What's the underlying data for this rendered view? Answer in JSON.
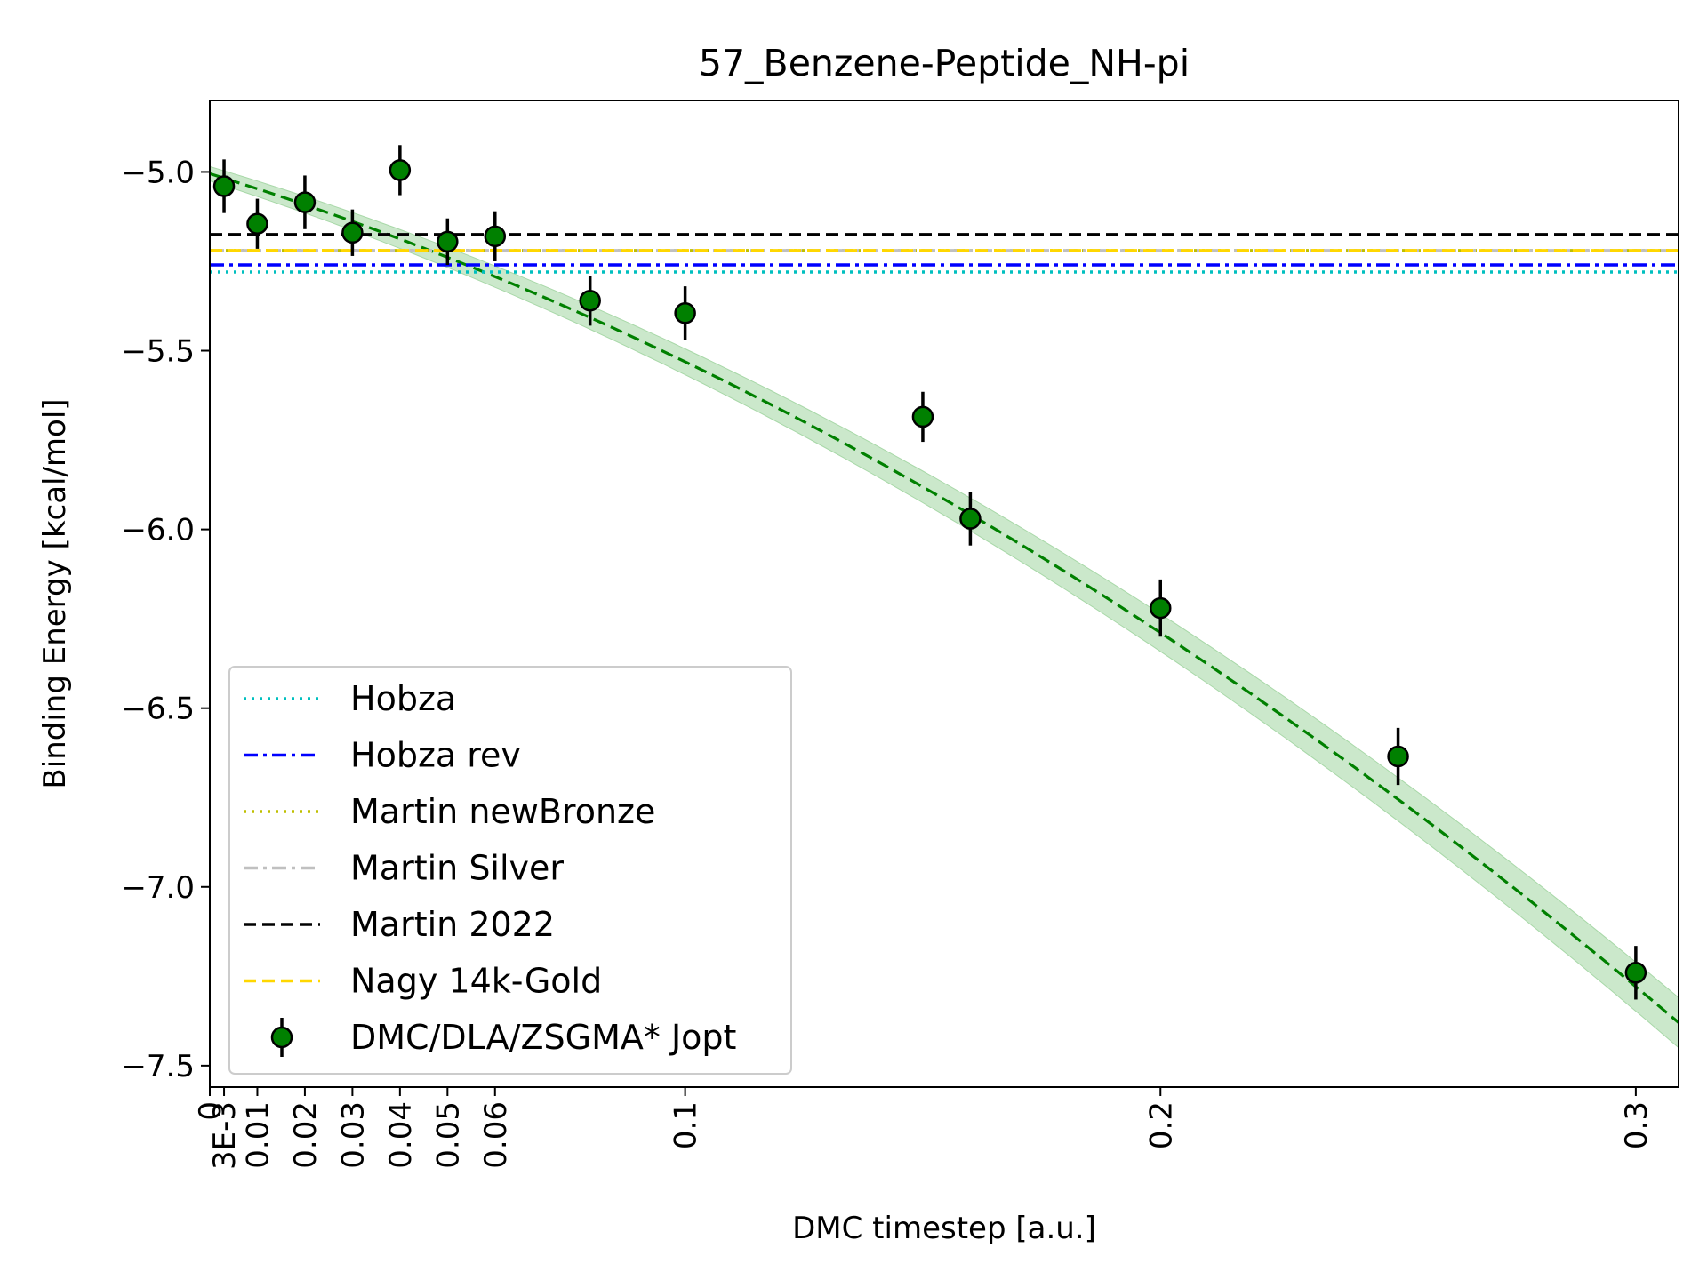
{
  "chart_data": {
    "type": "scatter",
    "title": "57_Benzene-Peptide_NH-pi",
    "xlabel": "DMC timestep [a.u.]",
    "ylabel": "Binding Energy [kcal/mol]",
    "xlim": [
      0,
      0.309
    ],
    "ylim": [
      -7.56,
      -4.8
    ],
    "x_ticks": [
      {
        "value": 0,
        "label": "0"
      },
      {
        "value": 0.003,
        "label": "3E-3"
      },
      {
        "value": 0.01,
        "label": "0.01"
      },
      {
        "value": 0.02,
        "label": "0.02"
      },
      {
        "value": 0.03,
        "label": "0.03"
      },
      {
        "value": 0.04,
        "label": "0.04"
      },
      {
        "value": 0.05,
        "label": "0.05"
      },
      {
        "value": 0.06,
        "label": "0.06"
      },
      {
        "value": 0.1,
        "label": "0.1"
      },
      {
        "value": 0.2,
        "label": "0.2"
      },
      {
        "value": 0.3,
        "label": "0.3"
      }
    ],
    "y_ticks": [
      {
        "value": -5.0,
        "label": "−5.0"
      },
      {
        "value": -5.5,
        "label": "−5.5"
      },
      {
        "value": -6.0,
        "label": "−6.0"
      },
      {
        "value": -6.5,
        "label": "−6.5"
      },
      {
        "value": -7.0,
        "label": "−7.0"
      },
      {
        "value": -7.5,
        "label": "−7.5"
      }
    ],
    "grid": false,
    "legend_position": "lower-left",
    "reference_lines": [
      {
        "name": "Hobza",
        "y": -5.28,
        "color": "#00bfbf",
        "style": "dotted"
      },
      {
        "name": "Hobza rev",
        "y": -5.26,
        "color": "#0000ff",
        "style": "dashdot"
      },
      {
        "name": "Martin newBronze",
        "y": -5.22,
        "color": "#bfbf00",
        "style": "dotted"
      },
      {
        "name": "Martin Silver",
        "y": -5.22,
        "color": "#c0c0c0",
        "style": "dashdot"
      },
      {
        "name": "Martin 2022",
        "y": -5.175,
        "color": "#000000",
        "style": "dashed"
      },
      {
        "name": "Nagy 14k-Gold",
        "y": -5.22,
        "color": "#ffd700",
        "style": "dashed"
      }
    ],
    "series": [
      {
        "name": "DMC/DLA/ZSGMA* Jopt",
        "color": "#008000",
        "points": [
          {
            "x": 0.003,
            "y": -5.04,
            "err": 0.075
          },
          {
            "x": 0.01,
            "y": -5.145,
            "err": 0.07
          },
          {
            "x": 0.02,
            "y": -5.085,
            "err": 0.075
          },
          {
            "x": 0.03,
            "y": -5.17,
            "err": 0.065
          },
          {
            "x": 0.04,
            "y": -4.995,
            "err": 0.07
          },
          {
            "x": 0.05,
            "y": -5.195,
            "err": 0.065
          },
          {
            "x": 0.06,
            "y": -5.18,
            "err": 0.07
          },
          {
            "x": 0.08,
            "y": -5.36,
            "err": 0.07
          },
          {
            "x": 0.1,
            "y": -5.395,
            "err": 0.075
          },
          {
            "x": 0.15,
            "y": -5.685,
            "err": 0.07
          },
          {
            "x": 0.16,
            "y": -5.97,
            "err": 0.075
          },
          {
            "x": 0.2,
            "y": -6.22,
            "err": 0.08
          },
          {
            "x": 0.25,
            "y": -6.635,
            "err": 0.08
          },
          {
            "x": 0.3,
            "y": -7.24,
            "err": 0.075
          }
        ]
      }
    ],
    "fit": {
      "style": "dashed",
      "color": "#008000",
      "band_color": "#a8d8a8",
      "coefficients": [
        -5.005,
        -4.1,
        -11.6
      ],
      "band_halfwidth_at_0": 0.02,
      "band_halfwidth_at_xmax": 0.07
    }
  }
}
